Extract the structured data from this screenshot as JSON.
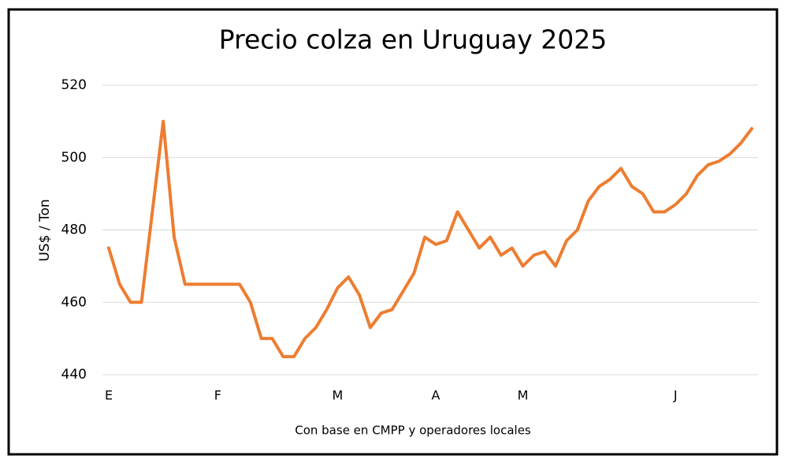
{
  "chart_data": {
    "type": "line",
    "title": "Precio colza en Uruguay 2025",
    "y_label": "US$ / Ton",
    "x_label": "Con base en CMPP y operadores locales",
    "categories": [
      "E",
      null,
      null,
      null,
      null,
      null,
      null,
      null,
      null,
      null,
      "F",
      null,
      null,
      null,
      null,
      null,
      null,
      null,
      null,
      null,
      null,
      "M",
      null,
      null,
      null,
      null,
      null,
      null,
      null,
      null,
      "A",
      null,
      null,
      null,
      null,
      null,
      null,
      null,
      "M",
      null,
      null,
      null,
      null,
      null,
      null,
      null,
      null,
      null,
      null,
      null,
      null,
      null,
      "J",
      null,
      null,
      null,
      null,
      null,
      null,
      null
    ],
    "series": [
      {
        "name": "Precio",
        "color": "#ed7d31",
        "values": [
          475,
          465,
          460,
          460,
          485,
          510,
          478,
          465,
          465,
          465,
          465,
          465,
          465,
          460,
          450,
          450,
          445,
          445,
          450,
          453,
          458,
          464,
          467,
          462,
          453,
          457,
          458,
          463,
          468,
          478,
          476,
          477,
          485,
          480,
          475,
          478,
          473,
          475,
          470,
          473,
          474,
          470,
          477,
          480,
          488,
          492,
          494,
          497,
          492,
          490,
          485,
          485,
          487,
          490,
          495,
          498,
          499,
          501,
          504,
          508
        ]
      }
    ],
    "ylim": [
      440,
      520
    ],
    "yticks": [
      440,
      460,
      480,
      500,
      520
    ],
    "grid": true
  }
}
